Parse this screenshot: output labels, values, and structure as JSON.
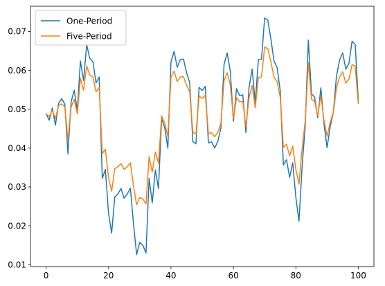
{
  "chart_data": {
    "type": "line",
    "title": "",
    "xlabel": "",
    "ylabel": "",
    "xlim": [
      -5,
      105
    ],
    "ylim": [
      0.0095,
      0.0765
    ],
    "xticks": [
      0,
      20,
      40,
      60,
      80,
      100
    ],
    "yticks": [
      0.01,
      0.02,
      0.03,
      0.04,
      0.05,
      0.06,
      0.07
    ],
    "grid": false,
    "legend_position": "top-left",
    "series": [
      {
        "name": "One-Period",
        "color": "#1f77b4",
        "x": [
          0,
          1,
          2,
          3,
          4,
          5,
          6,
          7,
          8,
          9,
          10,
          11,
          12,
          13,
          14,
          15,
          16,
          17,
          18,
          19,
          20,
          21,
          22,
          23,
          24,
          25,
          26,
          27,
          28,
          29,
          30,
          31,
          32,
          33,
          34,
          35,
          36,
          37,
          38,
          39,
          40,
          41,
          42,
          43,
          44,
          45,
          46,
          47,
          48,
          49,
          50,
          51,
          52,
          53,
          54,
          55,
          56,
          57,
          58,
          59,
          60,
          61,
          62,
          63,
          64,
          65,
          66,
          67,
          68,
          69,
          70,
          71,
          72,
          73,
          74,
          75,
          76,
          77,
          78,
          79,
          80,
          81,
          82,
          83,
          84,
          85,
          86,
          87,
          88,
          89,
          90,
          91,
          92,
          93,
          94,
          95,
          96,
          97,
          98,
          99,
          100
        ],
        "y": [
          0.0488,
          0.0472,
          0.0503,
          0.0459,
          0.0515,
          0.0527,
          0.0513,
          0.0385,
          0.0518,
          0.0549,
          0.0497,
          0.0624,
          0.0574,
          0.0666,
          0.0631,
          0.0622,
          0.0568,
          0.0583,
          0.0322,
          0.0345,
          0.0232,
          0.0181,
          0.0274,
          0.0282,
          0.0296,
          0.0271,
          0.0282,
          0.0297,
          0.0205,
          0.0126,
          0.0157,
          0.015,
          0.013,
          0.0322,
          0.0259,
          0.0344,
          0.0296,
          0.0475,
          0.0453,
          0.04,
          0.0622,
          0.0649,
          0.0608,
          0.0628,
          0.0629,
          0.0594,
          0.0568,
          0.0417,
          0.0411,
          0.0556,
          0.0548,
          0.0559,
          0.0413,
          0.0416,
          0.04,
          0.0417,
          0.0452,
          0.0615,
          0.0645,
          0.0598,
          0.0469,
          0.0553,
          0.0535,
          0.0537,
          0.044,
          0.0556,
          0.0603,
          0.0517,
          0.0628,
          0.0629,
          0.0735,
          0.0729,
          0.0681,
          0.0624,
          0.0607,
          0.0547,
          0.0356,
          0.037,
          0.0325,
          0.0362,
          0.0273,
          0.0212,
          0.0352,
          0.0457,
          0.0678,
          0.054,
          0.0531,
          0.0478,
          0.0555,
          0.0463,
          0.0401,
          0.0456,
          0.0491,
          0.0585,
          0.0626,
          0.0645,
          0.0603,
          0.0618,
          0.0675,
          0.0667,
          0.0522
        ]
      },
      {
        "name": "Five-Period",
        "color": "#ff7f0e",
        "x": [
          0,
          1,
          2,
          3,
          4,
          5,
          6,
          7,
          8,
          9,
          10,
          11,
          12,
          13,
          14,
          15,
          16,
          17,
          18,
          19,
          20,
          21,
          22,
          23,
          24,
          25,
          26,
          27,
          28,
          29,
          30,
          31,
          32,
          33,
          34,
          35,
          36,
          37,
          38,
          39,
          40,
          41,
          42,
          43,
          44,
          45,
          46,
          47,
          48,
          49,
          50,
          51,
          52,
          53,
          54,
          55,
          56,
          57,
          58,
          59,
          60,
          61,
          62,
          63,
          64,
          65,
          66,
          67,
          68,
          69,
          70,
          71,
          72,
          73,
          74,
          75,
          76,
          77,
          78,
          79,
          80,
          81,
          82,
          83,
          84,
          85,
          86,
          87,
          88,
          89,
          90,
          91,
          92,
          93,
          94,
          95,
          96,
          97,
          98,
          99,
          100
        ],
        "y": [
          0.0488,
          0.0481,
          0.0497,
          0.0476,
          0.0509,
          0.0514,
          0.0506,
          0.042,
          0.0505,
          0.0526,
          0.0488,
          0.058,
          0.0549,
          0.0611,
          0.0588,
          0.0583,
          0.0545,
          0.0556,
          0.0386,
          0.0397,
          0.0324,
          0.0289,
          0.0347,
          0.0352,
          0.036,
          0.0345,
          0.0352,
          0.0362,
          0.0302,
          0.0254,
          0.0273,
          0.0269,
          0.0256,
          0.0378,
          0.0338,
          0.039,
          0.0361,
          0.0483,
          0.0464,
          0.043,
          0.0582,
          0.0598,
          0.0571,
          0.0583,
          0.0584,
          0.0562,
          0.0545,
          0.0441,
          0.0436,
          0.0534,
          0.0528,
          0.0536,
          0.0437,
          0.044,
          0.0429,
          0.0441,
          0.0464,
          0.0573,
          0.0594,
          0.0563,
          0.0476,
          0.053,
          0.0519,
          0.052,
          0.0455,
          0.053,
          0.0561,
          0.0504,
          0.0582,
          0.0583,
          0.066,
          0.0656,
          0.0622,
          0.0583,
          0.0571,
          0.053,
          0.0401,
          0.041,
          0.038,
          0.0405,
          0.0345,
          0.0307,
          0.0398,
          0.047,
          0.062,
          0.0526,
          0.052,
          0.0483,
          0.0535,
          0.0472,
          0.043,
          0.0467,
          0.0491,
          0.0555,
          0.0583,
          0.0596,
          0.0567,
          0.0577,
          0.0615,
          0.0611,
          0.0515
        ]
      }
    ]
  }
}
